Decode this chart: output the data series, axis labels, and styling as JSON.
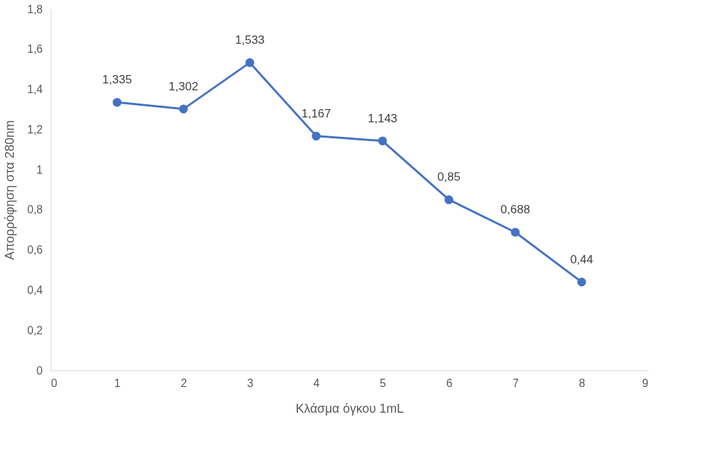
{
  "chart_data": {
    "type": "line",
    "xlabel": "Κλάσμα όγκου 1mL",
    "ylabel": "Απορρόφηση στα 280nm",
    "x": [
      1,
      2,
      3,
      4,
      5,
      6,
      7,
      8
    ],
    "series": [
      {
        "color": "#4472c4",
        "values": [
          1.335,
          1.302,
          1.533,
          1.167,
          1.143,
          0.85,
          0.688,
          0.44
        ],
        "value_labels": [
          "1,335",
          "1,302",
          "1,533",
          "1,167",
          "1,143",
          "0,85",
          "0,688",
          "0,44"
        ]
      }
    ],
    "xlim": [
      0,
      9
    ],
    "xticks": [
      0,
      1,
      2,
      3,
      4,
      5,
      6,
      7,
      8,
      9
    ],
    "ylim": [
      0,
      1.8
    ],
    "yticks": [
      0,
      {
        "value": 0.2,
        "label": "0,2"
      },
      {
        "value": 0.4,
        "label": "0,4"
      },
      {
        "value": 0.6,
        "label": "0,6"
      },
      {
        "value": 0.8,
        "label": "0,8"
      },
      1,
      {
        "value": 1.2,
        "label": "1,2"
      },
      {
        "value": 1.4,
        "label": "1,4"
      },
      {
        "value": 1.6,
        "label": "1,6"
      },
      {
        "value": 1.8,
        "label": "1,8"
      }
    ],
    "marker": "circle",
    "line_style": "solid",
    "grid": false
  }
}
